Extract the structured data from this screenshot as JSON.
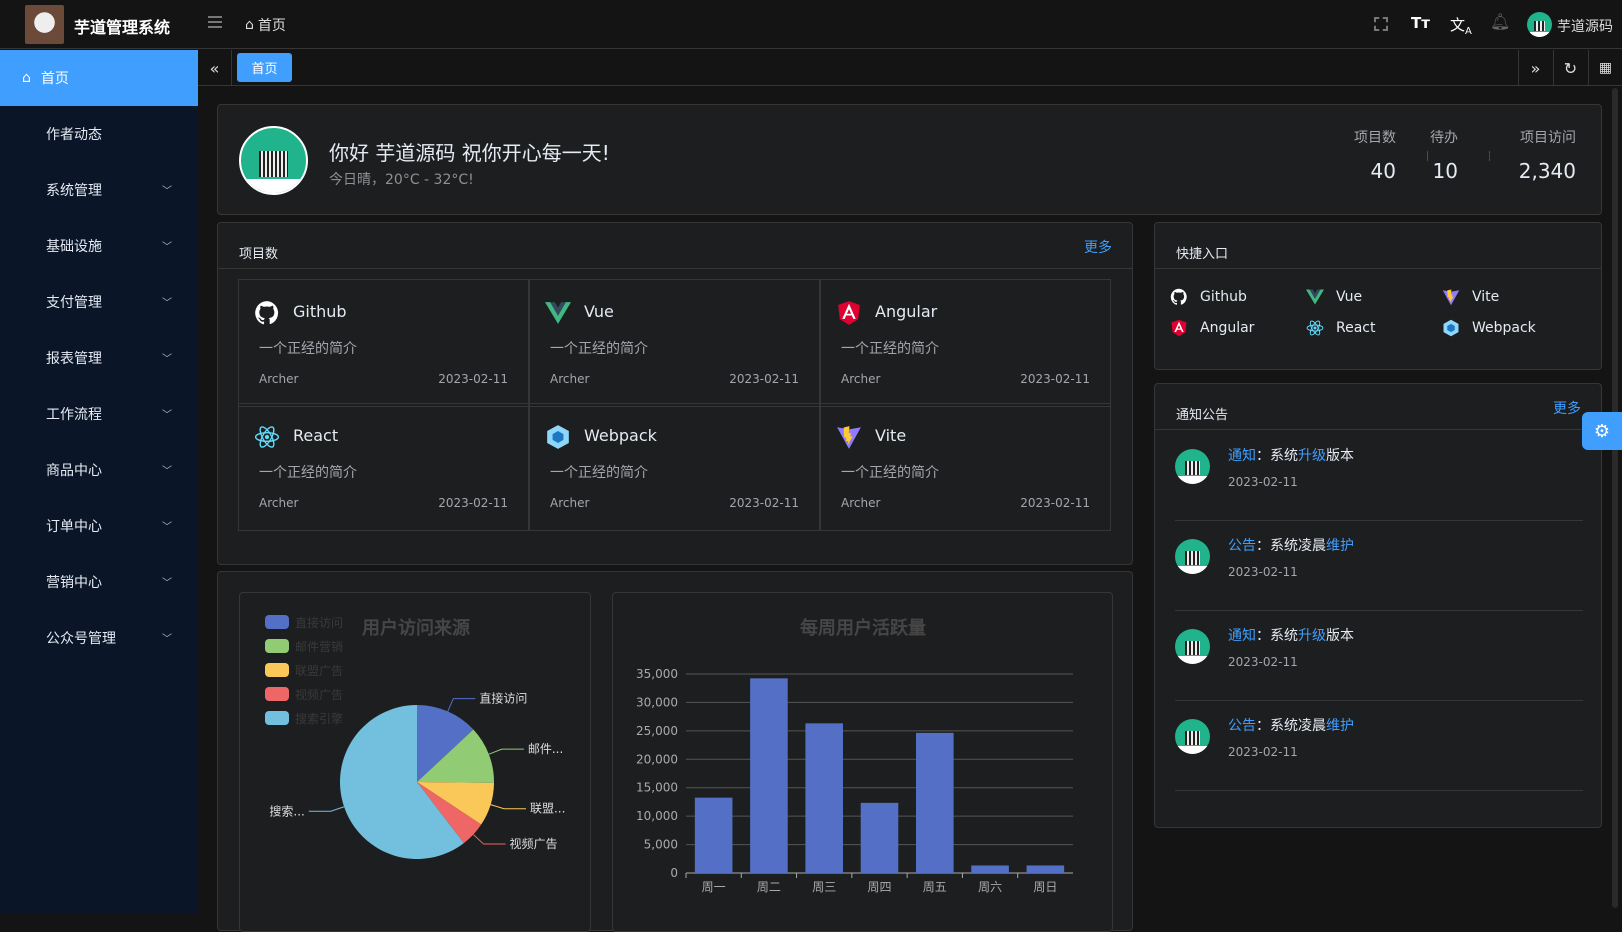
{
  "header": {
    "app_title": "芋道管理系统",
    "breadcrumb": "首页",
    "user_name": "芋道源码",
    "icons": [
      "menu-fold-icon",
      "home-icon",
      "fullscreen-icon",
      "font-size-icon",
      "translate-icon",
      "bell-icon"
    ]
  },
  "sidebar": {
    "items": [
      {
        "label": "首页",
        "active": true
      },
      {
        "label": "作者动态"
      },
      {
        "label": "系统管理",
        "expandable": true
      },
      {
        "label": "基础设施",
        "expandable": true
      },
      {
        "label": "支付管理",
        "expandable": true
      },
      {
        "label": "报表管理",
        "expandable": true
      },
      {
        "label": "工作流程",
        "expandable": true
      },
      {
        "label": "商品中心",
        "expandable": true
      },
      {
        "label": "订单中心",
        "expandable": true
      },
      {
        "label": "营销中心",
        "expandable": true
      },
      {
        "label": "公众号管理",
        "expandable": true
      }
    ]
  },
  "tabs": {
    "items": [
      {
        "label": "首页",
        "active": true
      }
    ]
  },
  "welcome": {
    "greeting": "你好 芋道源码 祝你开心每一天!",
    "weather": "今日晴，20°C - 32°C!",
    "stats": [
      {
        "label": "项目数",
        "value": "40"
      },
      {
        "label": "待办",
        "value": "10"
      },
      {
        "label": "项目访问",
        "value": "2,340"
      }
    ]
  },
  "projects": {
    "title": "项目数",
    "more": "更多",
    "items": [
      {
        "name": "Github",
        "icon": "github-icon",
        "desc": "一个正经的简介",
        "author": "Archer",
        "date": "2023-02-11"
      },
      {
        "name": "Vue",
        "icon": "vue-icon",
        "desc": "一个正经的简介",
        "author": "Archer",
        "date": "2023-02-11"
      },
      {
        "name": "Angular",
        "icon": "angular-icon",
        "desc": "一个正经的简介",
        "author": "Archer",
        "date": "2023-02-11"
      },
      {
        "name": "React",
        "icon": "react-icon",
        "desc": "一个正经的简介",
        "author": "Archer",
        "date": "2023-02-11"
      },
      {
        "name": "Webpack",
        "icon": "webpack-icon",
        "desc": "一个正经的简介",
        "author": "Archer",
        "date": "2023-02-11"
      },
      {
        "name": "Vite",
        "icon": "vite-icon",
        "desc": "一个正经的简介",
        "author": "Archer",
        "date": "2023-02-11"
      }
    ]
  },
  "quick_entry": {
    "title": "快捷入口",
    "items": [
      {
        "name": "Github",
        "icon": "github-icon"
      },
      {
        "name": "Vue",
        "icon": "vue-icon"
      },
      {
        "name": "Vite",
        "icon": "vite-icon"
      },
      {
        "name": "Angular",
        "icon": "angular-icon"
      },
      {
        "name": "React",
        "icon": "react-icon"
      },
      {
        "name": "Webpack",
        "icon": "webpack-icon"
      }
    ]
  },
  "notices": {
    "title": "通知公告",
    "more": "更多",
    "items": [
      {
        "type": "通知",
        "sep": "：",
        "parts": [
          [
            "系统",
            false
          ],
          [
            "升级",
            true
          ],
          [
            "版本",
            false
          ]
        ],
        "date": "2023-02-11"
      },
      {
        "type": "公告",
        "sep": "：",
        "parts": [
          [
            "系统凌晨",
            false
          ],
          [
            "维护",
            true
          ]
        ],
        "date": "2023-02-11"
      },
      {
        "type": "通知",
        "sep": "：",
        "parts": [
          [
            "系统",
            false
          ],
          [
            "升级",
            true
          ],
          [
            "版本",
            false
          ]
        ],
        "date": "2023-02-11"
      },
      {
        "type": "公告",
        "sep": "：",
        "parts": [
          [
            "系统凌晨",
            false
          ],
          [
            "维护",
            true
          ]
        ],
        "date": "2023-02-11"
      }
    ]
  },
  "colors": {
    "accent": "#409eff",
    "sidebar": "#0a1628",
    "card": "#1d1e1f"
  },
  "chart_data": [
    {
      "type": "pie",
      "title": "用户访问来源",
      "legend_position": "top-left",
      "slices": [
        {
          "name": "直接访问",
          "value": 335,
          "label": "直接访问",
          "color": "#5470c6"
        },
        {
          "name": "邮件营销",
          "value": 310,
          "label": "邮件...",
          "color": "#91cc75"
        },
        {
          "name": "联盟广告",
          "value": 234,
          "label": "联盟...",
          "color": "#fac858"
        },
        {
          "name": "视频广告",
          "value": 135,
          "label": "视频广告",
          "color": "#ee6666"
        },
        {
          "name": "搜索引擎",
          "value": 1548,
          "label": "搜索...",
          "color": "#73c0de"
        }
      ]
    },
    {
      "type": "bar",
      "title": "每周用户活跃量",
      "categories": [
        "周一",
        "周二",
        "周三",
        "周四",
        "周五",
        "周六",
        "周日"
      ],
      "values": [
        13253,
        34235,
        26321,
        12340,
        24643,
        1322,
        1324
      ],
      "ylim": [
        0,
        35000
      ],
      "yticks": [
        "0",
        "5,000",
        "10,000",
        "15,000",
        "20,000",
        "25,000",
        "30,000",
        "35,000"
      ],
      "grid": true,
      "color": "#5470c6"
    }
  ]
}
